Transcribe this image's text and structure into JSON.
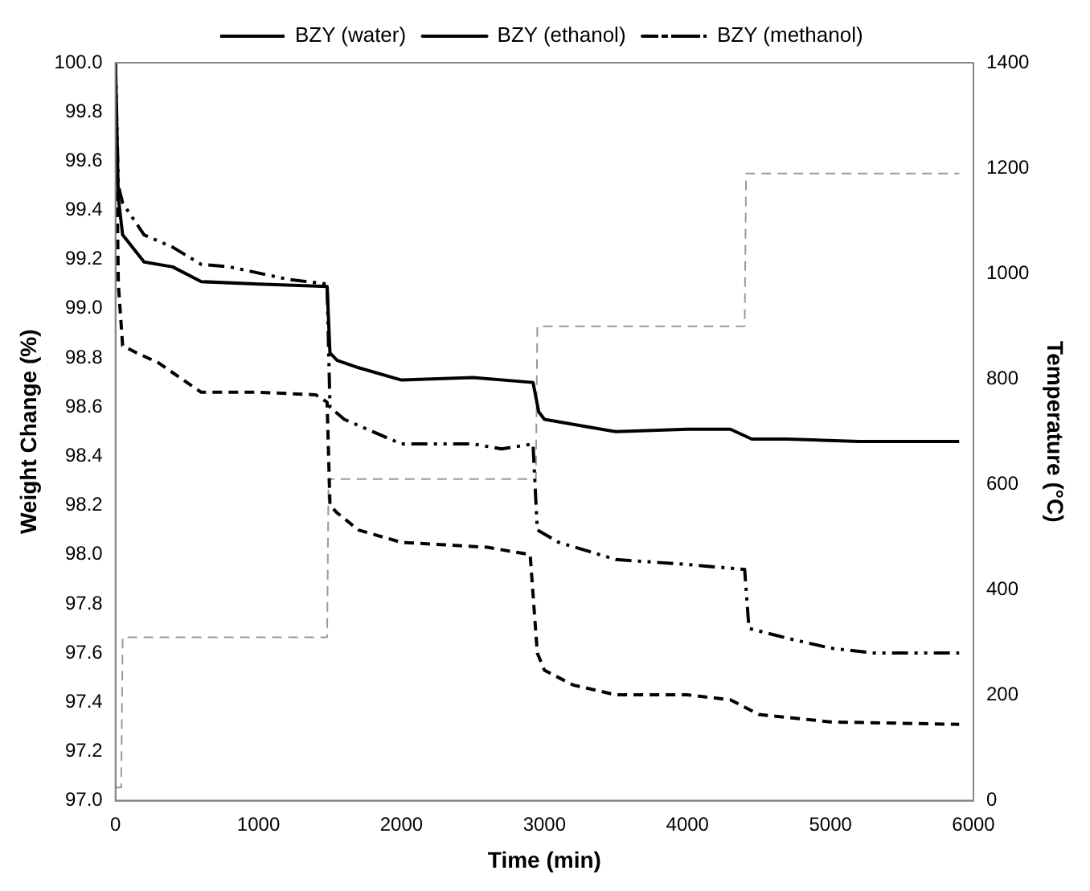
{
  "chart_data": {
    "type": "line",
    "xlabel": "Time (min)",
    "ylabel": "Weight Change (%)",
    "y2label": "Temperature (°C)",
    "xlim": [
      0,
      6000
    ],
    "xticks": [
      0,
      1000,
      2000,
      3000,
      4000,
      5000,
      6000
    ],
    "ylim": [
      97,
      100
    ],
    "yticks": [
      {
        "value": 97,
        "label": "97.0"
      },
      {
        "value": 97.2,
        "label": "97.2"
      },
      {
        "value": 97.4,
        "label": "97.4"
      },
      {
        "value": 97.6,
        "label": "97.6"
      },
      {
        "value": 97.8,
        "label": "97.8"
      },
      {
        "value": 98,
        "label": "98.0"
      },
      {
        "value": 98.2,
        "label": "98.2"
      },
      {
        "value": 98.4,
        "label": "98.4"
      },
      {
        "value": 98.6,
        "label": "98.6"
      },
      {
        "value": 98.8,
        "label": "98.8"
      },
      {
        "value": 99,
        "label": "99.0"
      },
      {
        "value": 99.2,
        "label": "99.2"
      },
      {
        "value": 99.4,
        "label": "99.4"
      },
      {
        "value": 99.6,
        "label": "99.6"
      },
      {
        "value": 99.8,
        "label": "99.8"
      },
      {
        "value": 100,
        "label": "100.0"
      }
    ],
    "y2lim": [
      0,
      1400
    ],
    "y2ticks": [
      0,
      200,
      400,
      600,
      800,
      1000,
      1200,
      1400
    ],
    "grid": false,
    "legend": "top",
    "marker": "none",
    "series": [
      {
        "name": "BZY (water)",
        "color": "#000000",
        "line_style": "dashed",
        "x": [
          0,
          20,
          50,
          150,
          300,
          600,
          1000,
          1400,
          1480,
          1500,
          1550,
          1700,
          2000,
          2600,
          2900,
          2950,
          3000,
          3200,
          3500,
          4000,
          4300,
          4500,
          5000,
          5900
        ],
        "values": [
          100,
          99.1,
          98.85,
          98.82,
          98.78,
          98.66,
          98.66,
          98.65,
          98.62,
          98.2,
          98.17,
          98.1,
          98.05,
          98.03,
          98,
          97.6,
          97.53,
          97.47,
          97.43,
          97.43,
          97.41,
          97.35,
          97.32,
          97.31
        ]
      },
      {
        "name": "BZY (ethanol)",
        "color": "#000000",
        "line_style": "solid",
        "x": [
          0,
          20,
          50,
          200,
          400,
          600,
          1000,
          1480,
          1500,
          1550,
          1700,
          2000,
          2500,
          2920,
          2960,
          3000,
          3300,
          3500,
          4000,
          4300,
          4450,
          4700,
          5200,
          5900
        ],
        "values": [
          100,
          99.45,
          99.3,
          99.19,
          99.17,
          99.11,
          99.1,
          99.09,
          98.82,
          98.79,
          98.76,
          98.71,
          98.72,
          98.7,
          98.58,
          98.55,
          98.52,
          98.5,
          98.51,
          98.51,
          98.47,
          98.47,
          98.46,
          98.46
        ]
      },
      {
        "name": "BZY (methanol)",
        "color": "#000000",
        "line_style": "dashdot",
        "x": [
          0,
          20,
          50,
          200,
          400,
          600,
          800,
          1200,
          1480,
          1500,
          1600,
          2000,
          2500,
          2700,
          2920,
          2950,
          3100,
          3500,
          4000,
          4400,
          4430,
          4700,
          5000,
          5300,
          5900
        ],
        "values": [
          100,
          99.5,
          99.43,
          99.3,
          99.25,
          99.18,
          99.17,
          99.12,
          99.1,
          98.6,
          98.55,
          98.45,
          98.45,
          98.43,
          98.45,
          98.1,
          98.05,
          97.98,
          97.96,
          97.94,
          97.7,
          97.66,
          97.62,
          97.6,
          97.6
        ]
      },
      {
        "color": "#999999",
        "line_style": "dashed",
        "axis": "y2",
        "x": [
          0,
          40,
          50,
          1480,
          1490,
          2940,
          2950,
          4400,
          4410,
          5900
        ],
        "values": [
          25,
          25,
          310,
          310,
          610,
          610,
          900,
          900,
          1190,
          1190
        ]
      }
    ]
  }
}
